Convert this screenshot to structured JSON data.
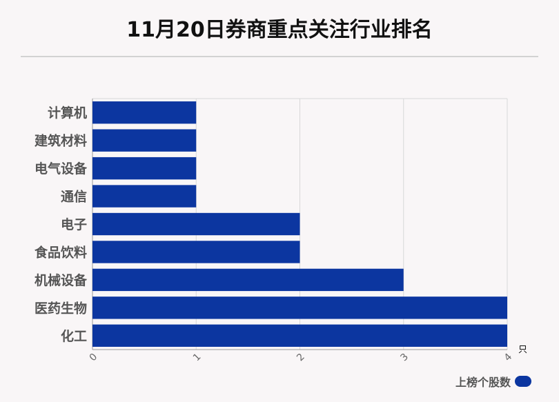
{
  "chart_data": {
    "type": "bar",
    "orientation": "horizontal",
    "title": "11月20日券商重点关注行业排名",
    "categories": [
      "计算机",
      "建筑材料",
      "电气设备",
      "通信",
      "电子",
      "食品饮料",
      "机械设备",
      "医药生物",
      "化工"
    ],
    "series": [
      {
        "name": "上榜个股数",
        "values": [
          1,
          1,
          1,
          1,
          2,
          2,
          3,
          4,
          4
        ]
      }
    ],
    "xlim": [
      0,
      4
    ],
    "xticks": [
      "0",
      "1",
      "2",
      "3",
      "4"
    ],
    "xunit": "只",
    "grid": true,
    "legend_position": "bottom-right",
    "bar_color": "#0c36a0"
  }
}
